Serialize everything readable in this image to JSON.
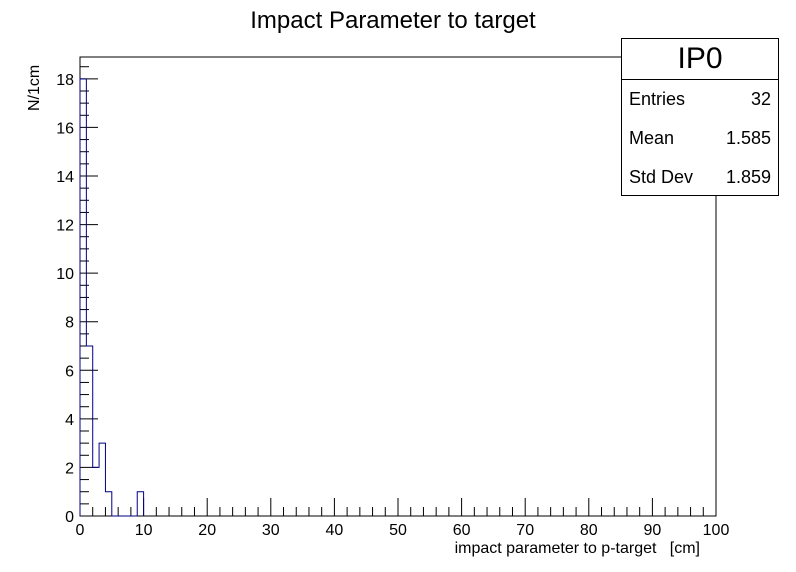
{
  "chart_data": {
    "type": "bar",
    "title": "Impact Parameter to target",
    "xlabel": "impact parameter to p-target   [cm]",
    "ylabel": "N/1cm",
    "xlim": [
      0,
      100
    ],
    "ylim": [
      0,
      18.9
    ],
    "bin_width": 1,
    "x_ticks": [
      0,
      10,
      20,
      30,
      40,
      50,
      60,
      70,
      80,
      90,
      100
    ],
    "y_ticks": [
      0,
      2,
      4,
      6,
      8,
      10,
      12,
      14,
      16,
      18
    ],
    "bins": [
      {
        "x_low": 0,
        "x_high": 1,
        "value": 18
      },
      {
        "x_low": 1,
        "x_high": 2,
        "value": 7
      },
      {
        "x_low": 2,
        "x_high": 3,
        "value": 2
      },
      {
        "x_low": 3,
        "x_high": 4,
        "value": 3
      },
      {
        "x_low": 4,
        "x_high": 5,
        "value": 1
      },
      {
        "x_low": 9,
        "x_high": 10,
        "value": 1
      }
    ],
    "grid": false,
    "line_color": "#000080"
  },
  "stats": {
    "name": "IP0",
    "entries_label": "Entries",
    "entries_value": "32",
    "mean_label": "Mean",
    "mean_value": "1.585",
    "stddev_label": "Std Dev",
    "stddev_value": "1.859"
  }
}
